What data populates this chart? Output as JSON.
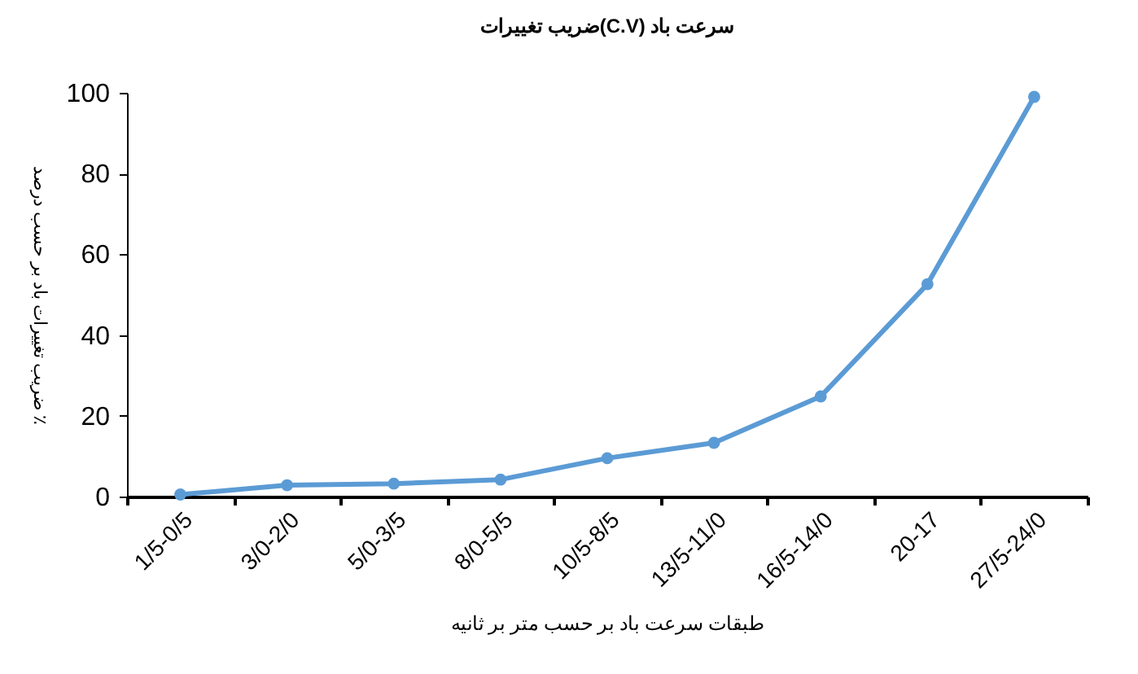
{
  "chart_data": {
    "type": "line",
    "title": "ضریب تغییرات(C.V) سرعت باد",
    "xlabel": "طبقات سرعت باد بر حسب متر بر ثانیه",
    "ylabel": "ضریب تغییرات باد بر حسب درصد ٪",
    "categories": [
      "1/5-0/5",
      "3/0-2/0",
      "5/0-3/5",
      "8/0-5/5",
      "10/5-8/5",
      "13/5-11/0",
      "16/5-14/0",
      "20-17",
      "27/5-24/0"
    ],
    "series": [
      {
        "color": "#5b9bd5",
        "values": [
          0.5,
          2.8,
          3.2,
          4.2,
          9.5,
          13.3,
          24.8,
          52.6,
          99.0
        ]
      }
    ],
    "ylim": [
      0,
      100
    ],
    "yticks": [
      0,
      20,
      40,
      60,
      80,
      100
    ],
    "grid": false,
    "marker": "circle",
    "line_style": "solid"
  }
}
